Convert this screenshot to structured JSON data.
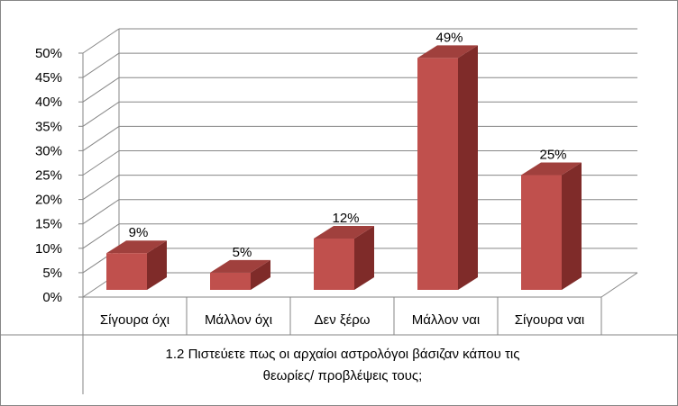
{
  "chart_data": {
    "type": "bar",
    "style": "3d-column",
    "categories": [
      "Σίγουρα όχι",
      "Μάλλον όχι",
      "Δεν ξέρω",
      "Μάλλον ναι",
      "Σίγουρα ναι"
    ],
    "values": [
      9,
      5,
      12,
      49,
      25
    ],
    "data_labels": [
      "9%",
      "5%",
      "12%",
      "49%",
      "25%"
    ],
    "title_lines": [
      "1.2 Πιστεύετε πως οι αρχαίοι αστρολόγοι βάσιζαν κάπου τις",
      "θεωρίες/ προβλέψεις τους;"
    ],
    "yticks": [
      "0%",
      "5%",
      "10%",
      "15%",
      "20%",
      "25%",
      "30%",
      "35%",
      "40%",
      "45%",
      "50%"
    ],
    "ylim": [
      0,
      50
    ],
    "grid": true,
    "legend": "none",
    "colors": {
      "bar_front": "#C0504D",
      "bar_side": "#7F2B29",
      "bar_top": "#A0403D",
      "grid": "#868686"
    }
  }
}
